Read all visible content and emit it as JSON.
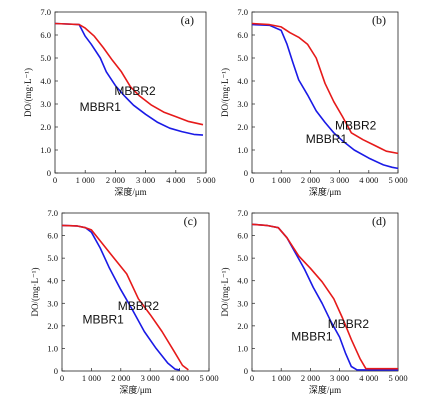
{
  "colors": {
    "MBBR1": "#1a1ae6",
    "MBBR2": "#e61a1a",
    "axis": "#222222"
  },
  "chart_data": [
    {
      "type": "line",
      "panel_label": "(a)",
      "xlabel": "深度/μm",
      "ylabel": "DO/(mg·L⁻¹)",
      "xlim": [
        0,
        5000
      ],
      "ylim": [
        0,
        7.0
      ],
      "xticks": [
        0,
        1000,
        2000,
        3000,
        4000,
        5000
      ],
      "xtick_labels": [
        "0",
        "1 000",
        "2 000",
        "3 000",
        "4 000",
        "5 000"
      ],
      "yticks": [
        0,
        1,
        2,
        3,
        4,
        5,
        6,
        7
      ],
      "ytick_labels": [
        "0",
        "1.0",
        "2.0",
        "3.0",
        "4.0",
        "5.0",
        "6.0",
        "7.0"
      ],
      "series": [
        {
          "name": "MBBR1",
          "color": "#1a1ae6",
          "x": [
            0,
            400,
            800,
            1000,
            1200,
            1500,
            1700,
            2000,
            2300,
            2600,
            3000,
            3400,
            3800,
            4200,
            4600,
            4900
          ],
          "y": [
            6.5,
            6.48,
            6.45,
            5.95,
            5.6,
            5.0,
            4.4,
            3.8,
            3.35,
            2.95,
            2.55,
            2.2,
            1.95,
            1.8,
            1.68,
            1.65
          ]
        },
        {
          "name": "MBBR2",
          "color": "#e61a1a",
          "x": [
            0,
            400,
            800,
            1000,
            1300,
            1600,
            1900,
            2200,
            2500,
            2800,
            3200,
            3600,
            4000,
            4400,
            4900
          ],
          "y": [
            6.5,
            6.48,
            6.45,
            6.3,
            5.95,
            5.45,
            4.9,
            4.4,
            3.75,
            3.35,
            2.95,
            2.65,
            2.45,
            2.25,
            2.1
          ]
        }
      ],
      "series_labels": [
        {
          "text": "MBBR1",
          "x": 1500,
          "y": 2.7
        },
        {
          "text": "MBBR2",
          "x": 2650,
          "y": 3.4
        }
      ]
    },
    {
      "type": "line",
      "panel_label": "(b)",
      "xlabel": "深度/μm",
      "ylabel": "DO/(mg·L⁻¹)",
      "xlim": [
        0,
        5000
      ],
      "ylim": [
        0,
        7.0
      ],
      "xticks": [
        0,
        1000,
        2000,
        3000,
        4000,
        5000
      ],
      "xtick_labels": [
        "0",
        "1 000",
        "2 000",
        "3 000",
        "4 000",
        "5 000"
      ],
      "yticks": [
        0,
        1,
        2,
        3,
        4,
        5,
        6,
        7
      ],
      "ytick_labels": [
        "0",
        "1.0",
        "2.0",
        "3.0",
        "4.0",
        "5.0",
        "6.0",
        "7.0"
      ],
      "series": [
        {
          "name": "MBBR1",
          "color": "#1a1ae6",
          "x": [
            0,
            600,
            1000,
            1200,
            1400,
            1600,
            1900,
            2200,
            2500,
            2800,
            3100,
            3500,
            4000,
            4500,
            4800,
            5000
          ],
          "y": [
            6.45,
            6.42,
            6.2,
            5.6,
            4.8,
            4.05,
            3.4,
            2.7,
            2.2,
            1.75,
            1.4,
            1.0,
            0.65,
            0.35,
            0.25,
            0.2
          ]
        },
        {
          "name": "MBBR2",
          "color": "#e61a1a",
          "x": [
            0,
            600,
            1000,
            1300,
            1600,
            1900,
            2200,
            2500,
            2800,
            3100,
            3400,
            3800,
            4200,
            4600,
            5000
          ],
          "y": [
            6.5,
            6.45,
            6.35,
            6.1,
            5.9,
            5.6,
            5.0,
            3.9,
            3.1,
            2.45,
            1.75,
            1.45,
            1.2,
            0.95,
            0.85
          ]
        }
      ],
      "series_labels": [
        {
          "text": "MBBR1",
          "x": 2550,
          "y": 1.3
        },
        {
          "text": "MBBR2",
          "x": 3550,
          "y": 1.9
        }
      ]
    },
    {
      "type": "line",
      "panel_label": "(c)",
      "xlabel": "深度/μm",
      "ylabel": "DO/(mg·L⁻¹)",
      "xlim": [
        0,
        5000
      ],
      "ylim": [
        0,
        7.0
      ],
      "xticks": [
        0,
        1000,
        2000,
        3000,
        4000,
        5000
      ],
      "xtick_labels": [
        "0",
        "1 000",
        "2 000",
        "3 000",
        "4 000",
        "5 000"
      ],
      "yticks": [
        0,
        1,
        2,
        3,
        4,
        5,
        6,
        7
      ],
      "ytick_labels": [
        "0",
        "1.0",
        "2.0",
        "3.0",
        "4.0",
        "5.0",
        "6.0",
        "7.0"
      ],
      "series": [
        {
          "name": "MBBR1",
          "color": "#1a1ae6",
          "x": [
            0,
            500,
            800,
            1000,
            1300,
            1600,
            2000,
            2400,
            2800,
            3200,
            3600,
            3850,
            4000
          ],
          "y": [
            6.45,
            6.43,
            6.35,
            6.15,
            5.45,
            4.6,
            3.6,
            2.7,
            1.75,
            1.0,
            0.35,
            0.08,
            0.05
          ]
        },
        {
          "name": "MBBR2",
          "color": "#e61a1a",
          "x": [
            0,
            500,
            800,
            1000,
            1400,
            1800,
            2200,
            2600,
            3000,
            3400,
            3800,
            4100,
            4300
          ],
          "y": [
            6.45,
            6.43,
            6.35,
            6.25,
            5.6,
            4.95,
            4.3,
            3.2,
            2.5,
            1.75,
            0.9,
            0.25,
            0.05
          ]
        }
      ],
      "series_labels": [
        {
          "text": "MBBR1",
          "x": 1400,
          "y": 2.1
        },
        {
          "text": "MBBR2",
          "x": 2600,
          "y": 2.7
        }
      ]
    },
    {
      "type": "line",
      "panel_label": "(d)",
      "xlabel": "深度/μm",
      "ylabel": "DO/(mg·L⁻¹)",
      "xlim": [
        0,
        5000
      ],
      "ylim": [
        0,
        7.0
      ],
      "xticks": [
        0,
        1000,
        2000,
        3000,
        4000,
        5000
      ],
      "xtick_labels": [
        "0",
        "1 000",
        "2 000",
        "3 000",
        "4 000",
        "5 000"
      ],
      "yticks": [
        0,
        1,
        2,
        3,
        4,
        5,
        6,
        7
      ],
      "ytick_labels": [
        "0",
        "1.0",
        "2.0",
        "3.0",
        "4.0",
        "5.0",
        "6.0",
        "7.0"
      ],
      "series": [
        {
          "name": "MBBR1",
          "color": "#1a1ae6",
          "x": [
            0,
            500,
            900,
            1200,
            1500,
            1800,
            2100,
            2400,
            2700,
            3000,
            3200,
            3400,
            3600,
            4000,
            4500,
            5000
          ],
          "y": [
            6.5,
            6.45,
            6.35,
            5.9,
            5.2,
            4.5,
            3.7,
            3.0,
            2.2,
            1.5,
            0.8,
            0.2,
            0.05,
            0.05,
            0.05,
            0.05
          ]
        },
        {
          "name": "MBBR2",
          "color": "#e61a1a",
          "x": [
            0,
            500,
            900,
            1200,
            1600,
            2000,
            2400,
            2800,
            3100,
            3400,
            3700,
            3900,
            4000,
            4500,
            5000
          ],
          "y": [
            6.5,
            6.45,
            6.35,
            5.9,
            5.1,
            4.55,
            3.95,
            3.2,
            2.35,
            1.4,
            0.55,
            0.1,
            0.1,
            0.1,
            0.1
          ]
        }
      ],
      "series_labels": [
        {
          "text": "MBBR1",
          "x": 2050,
          "y": 1.35
        },
        {
          "text": "MBBR2",
          "x": 3300,
          "y": 1.9
        }
      ]
    }
  ]
}
